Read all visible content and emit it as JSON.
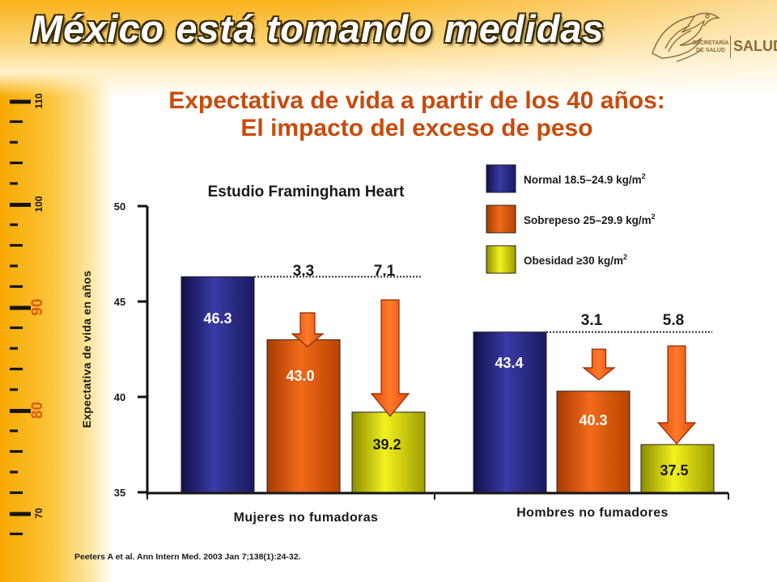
{
  "header": {
    "title": "México está tomando medidas",
    "logo_text_small": "SECRETARÍA DE SALUD",
    "logo_text_big": "SALUD"
  },
  "slide": {
    "title_line1": "Expectativa de vida a partir de los 40 años:",
    "title_line2": "El impacto del exceso de peso"
  },
  "ruler": {
    "labels": [
      "110",
      "100",
      "90",
      "80",
      "70"
    ]
  },
  "citation": "Peeters A et al. Ann Intern Med. 2003 Jan 7;138(1):24-32.",
  "colors": {
    "normal": "#26267a",
    "sobrepeso": "#e05b10",
    "obesidad": "#e3e312",
    "title": "#c84b0c",
    "arrow": "#f05a12"
  },
  "chart_data": {
    "type": "bar",
    "title": "Estudio Framingham Heart",
    "ylabel": "Expectativa de vida en años",
    "ylim": [
      35,
      50
    ],
    "yticks": [
      35,
      40,
      45,
      50
    ],
    "groups": [
      "Mujeres no fumadoras",
      "Hombres no fumadores"
    ],
    "series": [
      {
        "name": "Normal 18.5–24.9 kg/m²",
        "values": [
          46.3,
          43.4
        ],
        "labels": [
          "46.3",
          "43.4"
        ]
      },
      {
        "name": "Sobrepeso 25–29.9 kg/m²",
        "values": [
          43.0,
          40.3
        ],
        "labels": [
          "43.0",
          "40.3"
        ]
      },
      {
        "name": "Obesidad ≥30 kg/m²",
        "values": [
          39.2,
          37.5
        ],
        "labels": [
          "39.2",
          "37.5"
        ]
      }
    ],
    "reductions": [
      {
        "group": "Mujeres no fumadoras",
        "sobrepeso": "3.3",
        "obesidad": "7.1"
      },
      {
        "group": "Hombres no fumadores",
        "sobrepeso": "3.1",
        "obesidad": "5.8"
      }
    ],
    "legend": {
      "placement": "top-right",
      "items": [
        {
          "base": "Normal 18.5–24.9 kg/m",
          "sup": "2"
        },
        {
          "base": "Sobrepeso 25–29.9 kg/m",
          "sup": "2"
        },
        {
          "base": "Obesidad ≥30 kg/m",
          "sup": "2"
        }
      ]
    }
  }
}
